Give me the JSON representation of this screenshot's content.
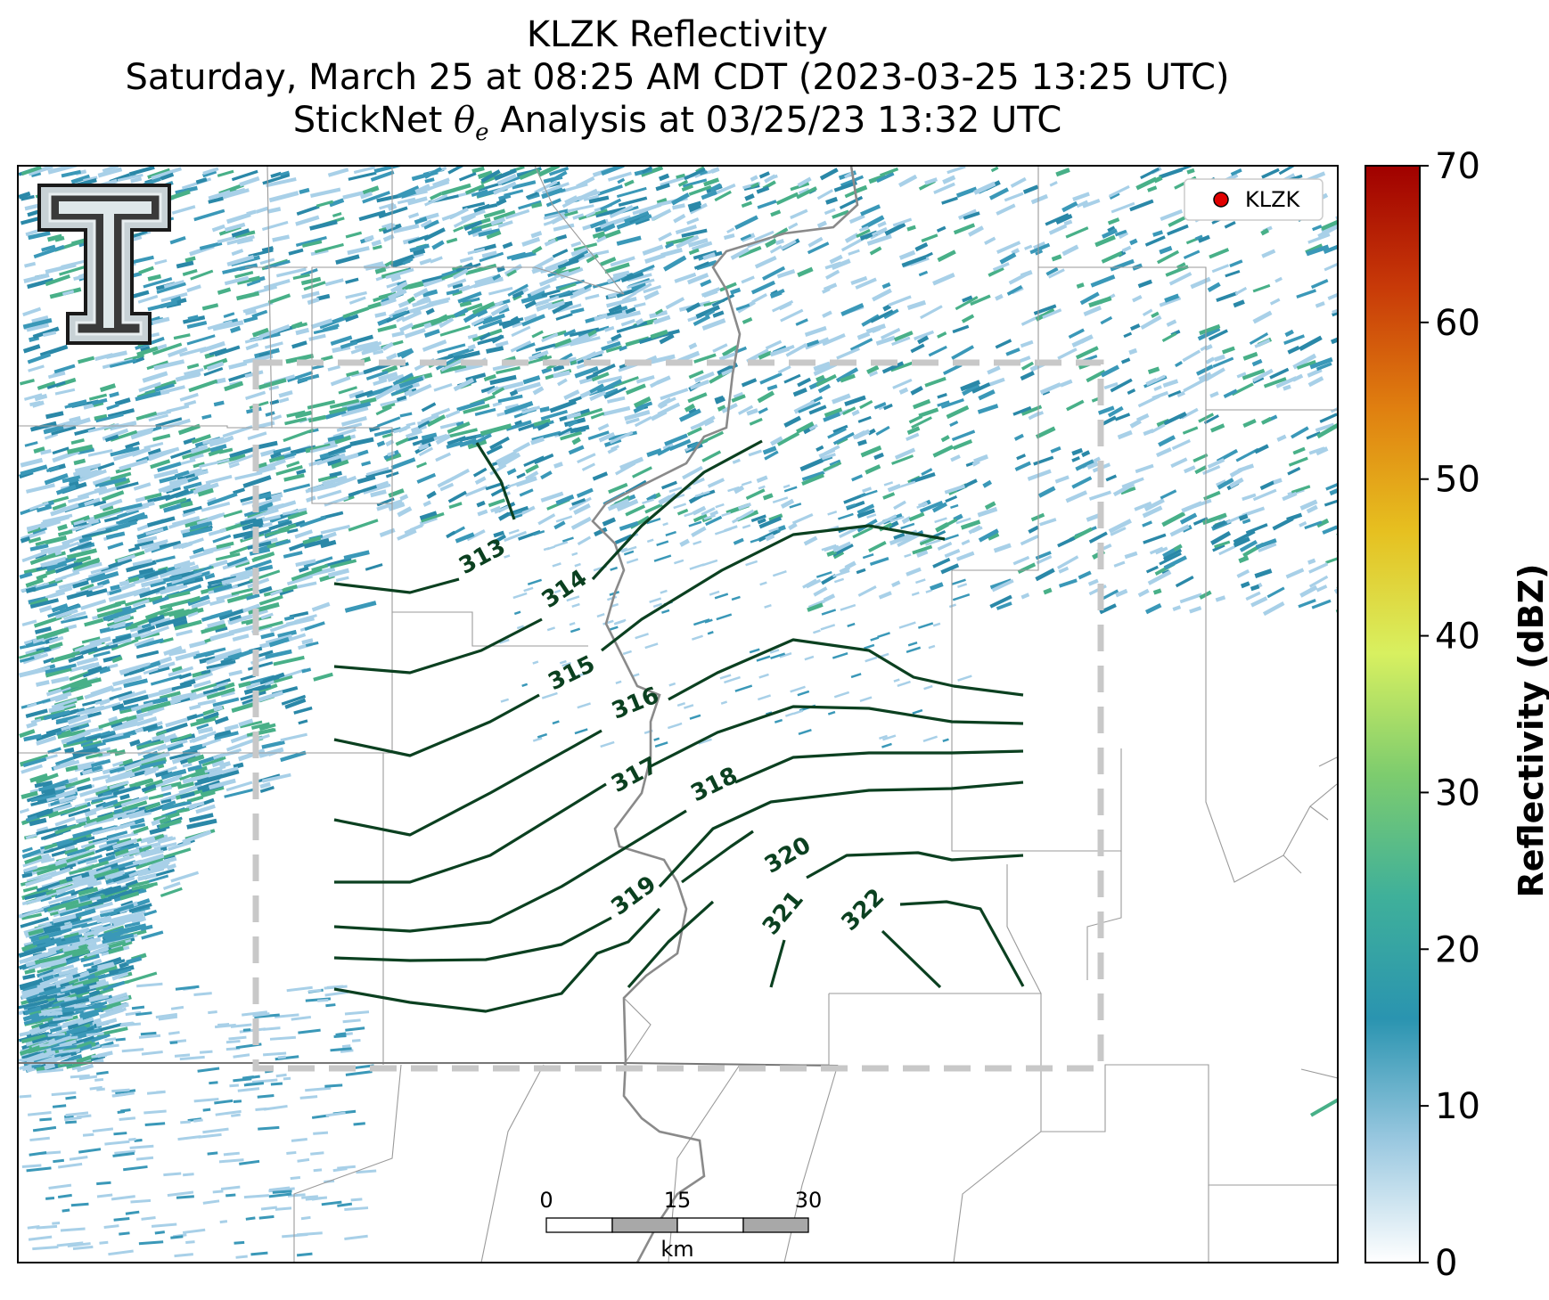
{
  "title": {
    "line1": "KLZK Reflectivity",
    "line2": "Saturday, March 25 at 08:25 AM CDT (2023-03-25 13:25 UTC)",
    "line3_prefix": "StickNet",
    "line3_symbol": "θ",
    "line3_subscript": "e",
    "line3_suffix": "Analysis at 03/25/23 13:32 UTC"
  },
  "legend": {
    "marker_label": "KLZK",
    "marker_color": "#e00000"
  },
  "colorbar": {
    "label": "Reflectivity (dBZ)",
    "min": 0,
    "max": 70,
    "ticks": [
      "0",
      "10",
      "20",
      "30",
      "40",
      "50",
      "60",
      "70"
    ],
    "colors": [
      "#ffffff",
      "#9ac8e0",
      "#2a94b0",
      "#3fb09a",
      "#7dcc6e",
      "#d8f060",
      "#e6c020",
      "#e08010",
      "#c83a08",
      "#a00000"
    ]
  },
  "contours": {
    "color": "#0b4020",
    "labels": [
      "313",
      "314",
      "315",
      "316",
      "317",
      "318",
      "319",
      "320",
      "321",
      "322"
    ]
  },
  "scale_bar": {
    "ticks": [
      "0",
      "15",
      "30"
    ],
    "unit": "km"
  },
  "logo": {
    "text": "T"
  },
  "colors": {
    "echo_light": "#a8d0e8",
    "echo_mid": "#3a98b8",
    "echo_dark": "#2a88a8",
    "echo_green": "#48b088",
    "analysis_box": "#c8c8c8",
    "river": "#888888",
    "boundary": "#999999"
  }
}
